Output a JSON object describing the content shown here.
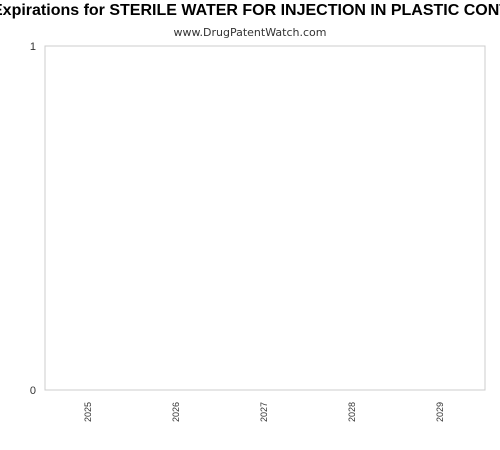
{
  "chart_data": {
    "type": "bar",
    "title": "Expirations for STERILE WATER FOR INJECTION IN PLASTIC CONTAINER",
    "subtitle": "www.DrugPatentWatch.com",
    "categories": [
      "2025",
      "2026",
      "2027",
      "2028",
      "2029"
    ],
    "values": [
      0,
      0,
      0,
      0,
      0
    ],
    "ylim": [
      0,
      1
    ],
    "yticks": [
      "0",
      "1"
    ],
    "xlabel": "",
    "ylabel": "",
    "grid": false,
    "colors": {
      "plot_border": "#cccccc",
      "text": "#333333"
    }
  }
}
